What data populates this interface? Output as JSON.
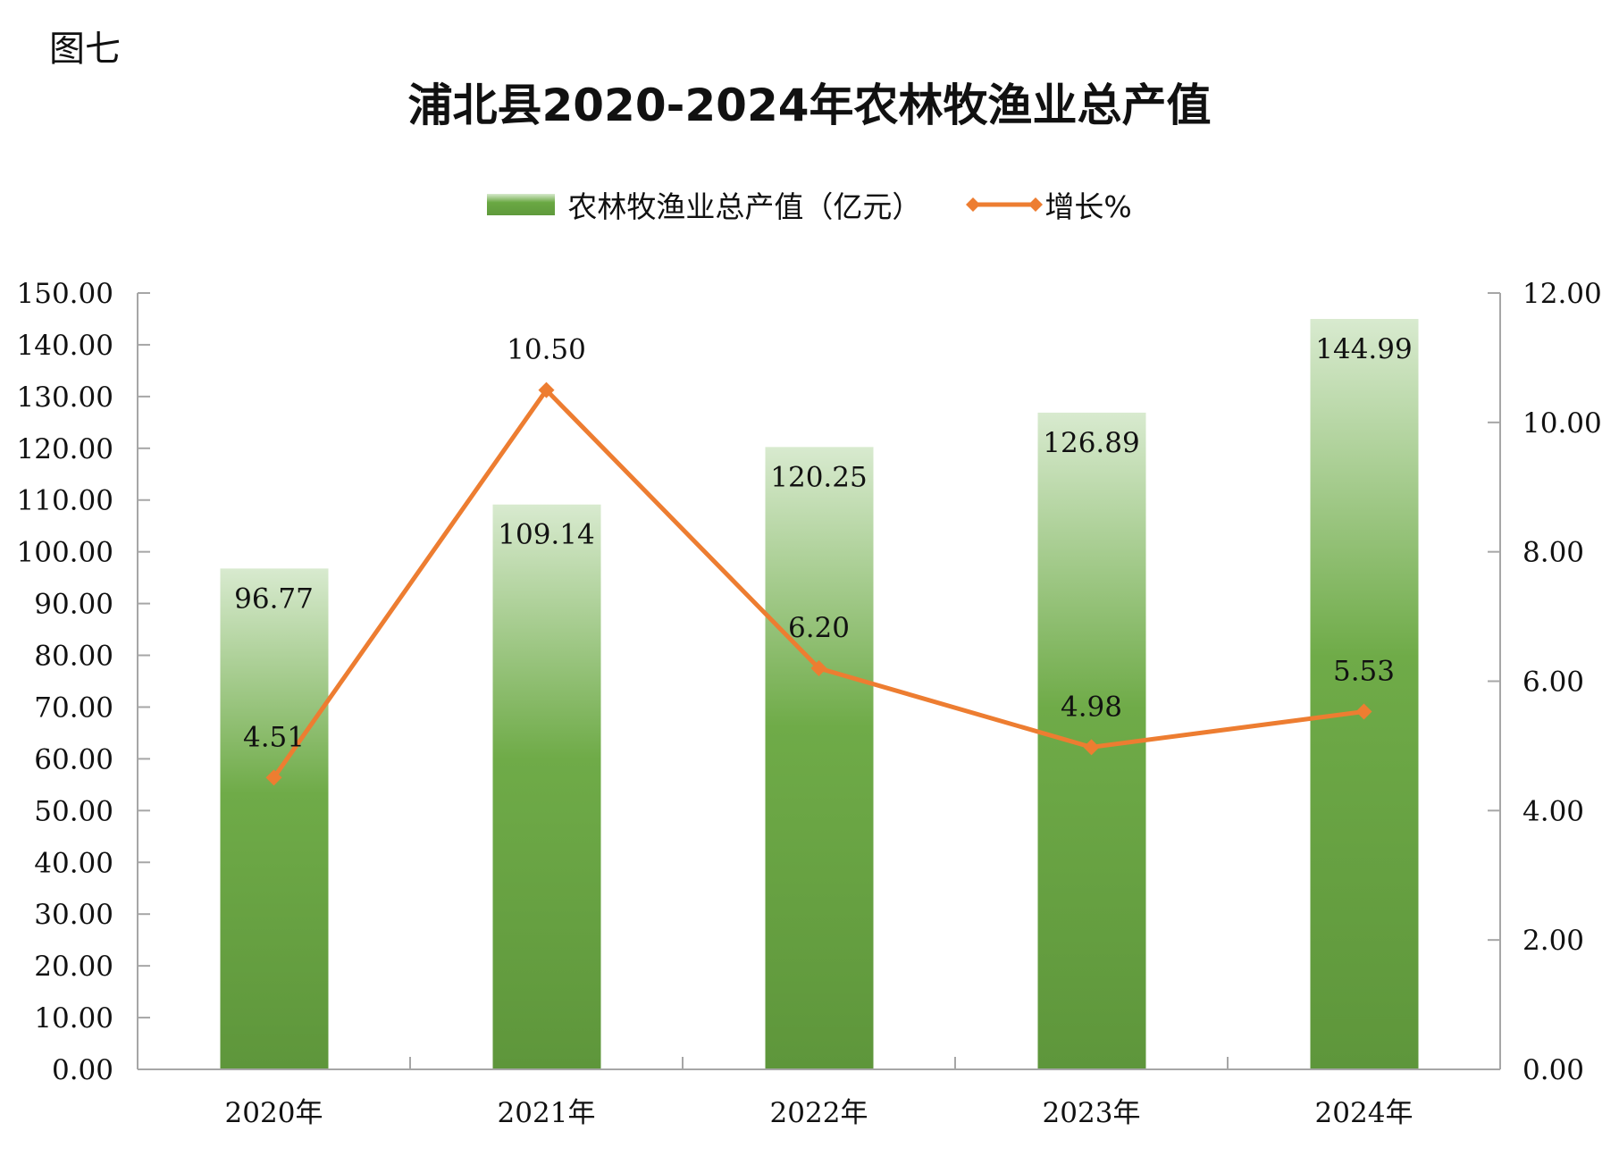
{
  "figure_label": "图七",
  "chart_data": {
    "type": "bar+line",
    "title": "浦北县2020-2024年农林牧渔业总产值",
    "categories": [
      "2020年",
      "2021年",
      "2022年",
      "2023年",
      "2024年"
    ],
    "series": [
      {
        "name": "农林牧渔业总产值（亿元）",
        "type": "bar",
        "axis": "left",
        "values": [
          96.77,
          109.14,
          120.25,
          126.89,
          144.99
        ],
        "labels": [
          "96.77",
          "109.14",
          "120.25",
          "126.89",
          "144.99"
        ],
        "color": "#6aa843"
      },
      {
        "name": "增长%",
        "type": "line",
        "axis": "right",
        "values": [
          4.51,
          10.5,
          6.2,
          4.98,
          5.53
        ],
        "labels": [
          "4.51",
          "10.50",
          "6.20",
          "4.98",
          "5.53"
        ],
        "color": "#ed7d31"
      }
    ],
    "left_axis": {
      "ylim": [
        0,
        150
      ],
      "ticks": [
        "0.00",
        "10.00",
        "20.00",
        "30.00",
        "40.00",
        "50.00",
        "60.00",
        "70.00",
        "80.00",
        "90.00",
        "100.00",
        "110.00",
        "120.00",
        "130.00",
        "140.00",
        "150.00"
      ]
    },
    "right_axis": {
      "ylim": [
        0,
        12
      ],
      "ticks": [
        "0.00",
        "2.00",
        "4.00",
        "6.00",
        "8.00",
        "10.00",
        "12.00"
      ]
    },
    "legend_position": "top",
    "grid": false
  }
}
